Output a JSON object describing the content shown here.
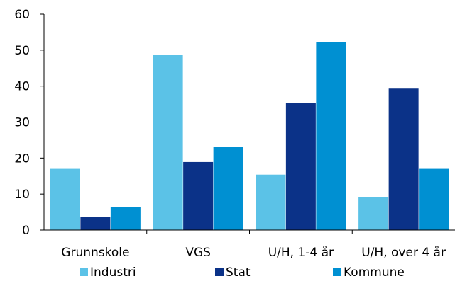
{
  "chart_data": {
    "type": "bar",
    "categories": [
      "Grunnskole",
      "VGS",
      "U/H, 1-4 år",
      "U/H, over 4 år"
    ],
    "series": [
      {
        "name": "Industri",
        "color": "#5bc2e7",
        "values": [
          17,
          48.6,
          15.4,
          9.1
        ]
      },
      {
        "name": "Stat",
        "color": "#0b3288",
        "values": [
          3.6,
          18.9,
          35.4,
          39.3
        ]
      },
      {
        "name": "Kommune",
        "color": "#0090d2",
        "values": [
          6.3,
          23.2,
          52.2,
          17
        ]
      }
    ],
    "yticks": [
      "0",
      "10",
      "20",
      "30",
      "40",
      "50",
      "60"
    ],
    "ylim": [
      0,
      60
    ],
    "grid": false,
    "legend_position": "bottom"
  }
}
